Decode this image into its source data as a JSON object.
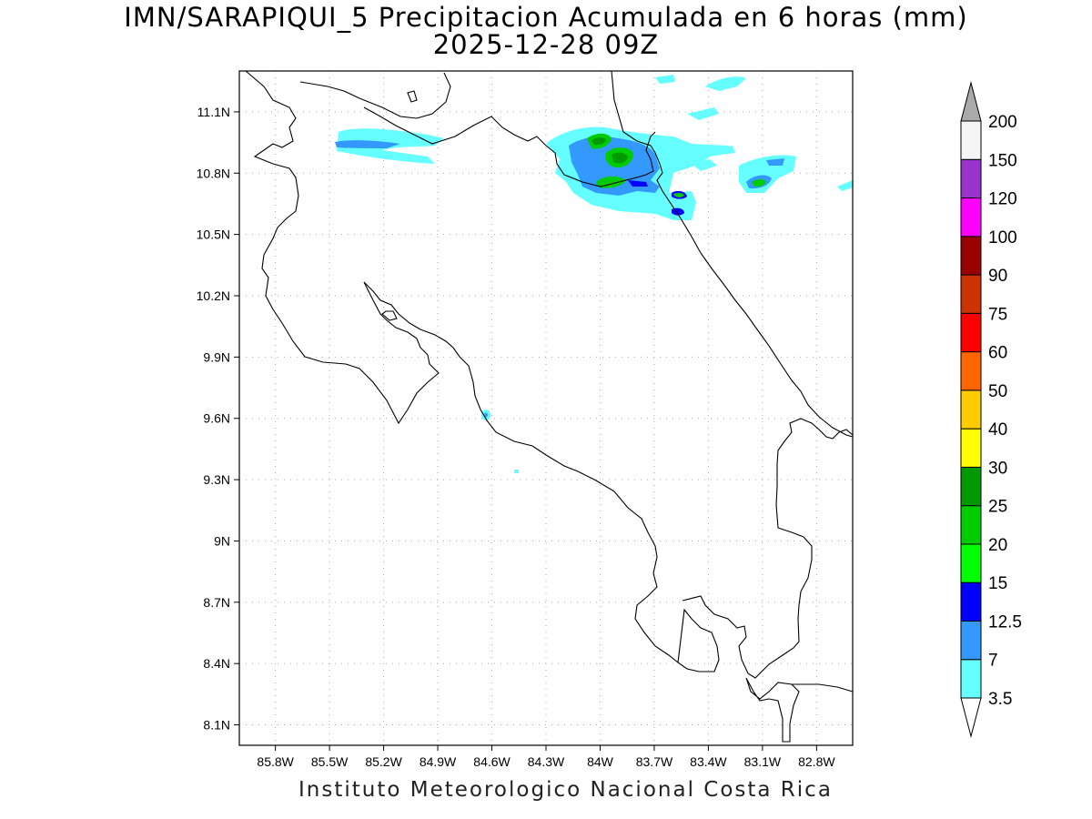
{
  "title": {
    "line1": "IMN/SARAPIQUI_5 Precipitacion Acumulada en 6 horas (mm)",
    "line2": "2025-12-28 09Z"
  },
  "credit": "Instituto Meteorologico Nacional Costa Rica",
  "map": {
    "lon_range": [
      -86.0,
      -82.6
    ],
    "lat_range": [
      8.0,
      11.3
    ],
    "x_ticks": [
      "85.8W",
      "85.5W",
      "85.2W",
      "84.9W",
      "84.6W",
      "84.3W",
      "84W",
      "83.7W",
      "83.4W",
      "83.1W",
      "82.8W"
    ],
    "y_ticks": [
      "8.1N",
      "8.4N",
      "8.7N",
      "9N",
      "9.3N",
      "9.6N",
      "9.9N",
      "10.2N",
      "10.5N",
      "10.8N",
      "11.1N"
    ],
    "grid": "dotted"
  },
  "colorbar": {
    "levels": [
      "3.5",
      "7",
      "12.5",
      "15",
      "20",
      "25",
      "30",
      "40",
      "50",
      "60",
      "75",
      "90",
      "100",
      "120",
      "150",
      "200"
    ],
    "colors": [
      "#66ffff",
      "#3399ff",
      "#0000ff",
      "#00ff00",
      "#00cc00",
      "#009900",
      "#ffff00",
      "#ffcc00",
      "#ff6600",
      "#ff0000",
      "#cc3300",
      "#990000",
      "#ff00ff",
      "#9933cc",
      "#f5f5f5",
      "#aaaaaa"
    ]
  }
}
